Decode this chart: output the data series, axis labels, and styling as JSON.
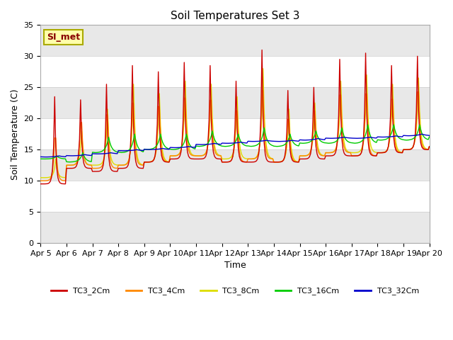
{
  "title": "Soil Temperatures Set 3",
  "xlabel": "Time",
  "ylabel": "Soil Temperature (C)",
  "ylim": [
    0,
    35
  ],
  "yticks": [
    0,
    5,
    10,
    15,
    20,
    25,
    30,
    35
  ],
  "series_colors": [
    "#cc0000",
    "#ff8800",
    "#dddd00",
    "#00cc00",
    "#0000cc"
  ],
  "series_names": [
    "TC3_2Cm",
    "TC3_4Cm",
    "TC3_8Cm",
    "TC3_16Cm",
    "TC3_32Cm"
  ],
  "annotation_text": "SI_met",
  "annotation_bg": "#ffffaa",
  "annotation_fg": "#880000",
  "annotation_border": "#aaaa00",
  "fig_bg": "#ffffff",
  "plot_bg": "#ffffff",
  "band_color": "#e8e8e8",
  "title_fontsize": 11,
  "axis_fontsize": 9,
  "tick_fontsize": 8
}
